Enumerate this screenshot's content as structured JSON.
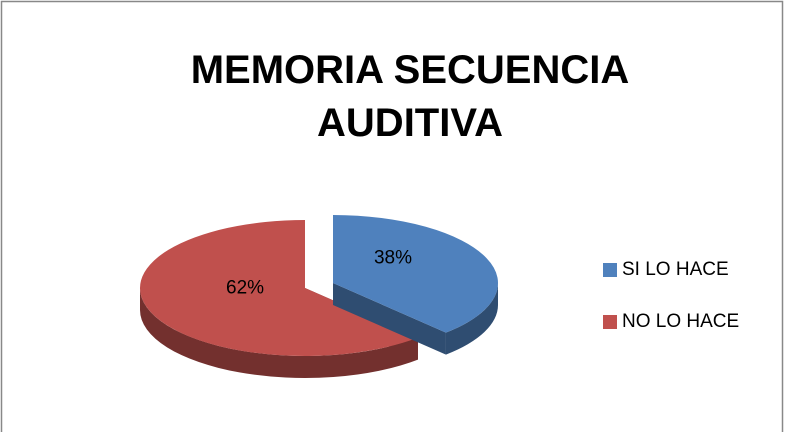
{
  "chart_data": {
    "type": "pie3d",
    "title": "MEMORIA SECUENCIA AUDITIVA",
    "categories": [
      "SI LO HACE",
      "NO LO HACE"
    ],
    "series": [
      {
        "name": "MEMORIA SECUENCIA AUDITIVA",
        "values": [
          38,
          62
        ],
        "value_labels": [
          "38%",
          "62%"
        ],
        "colors": [
          "#4f81bd",
          "#c0504d"
        ]
      }
    ],
    "legend": "right"
  }
}
